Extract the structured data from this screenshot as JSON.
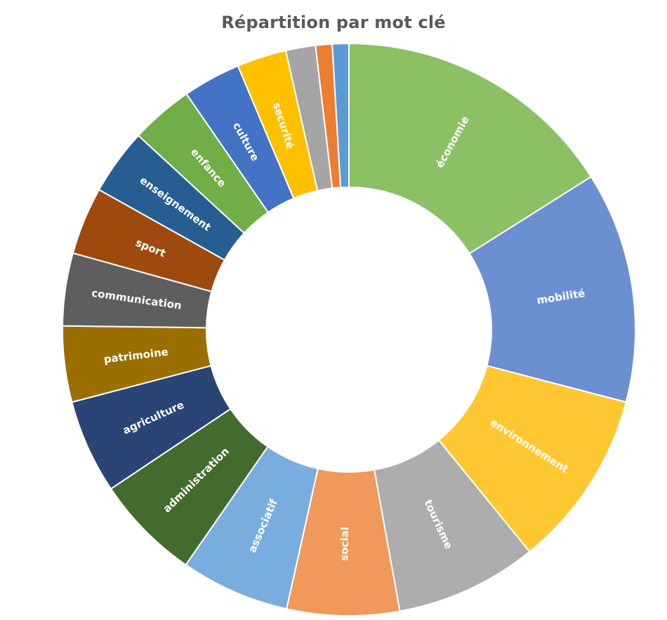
{
  "chart_data": {
    "type": "pie",
    "variant": "donut",
    "title": "Répartition par mot clé",
    "legend": "none",
    "slice_order": "clockwise from top",
    "slices": [
      {
        "label": "économie",
        "value": 17.2,
        "color": "#8CC065"
      },
      {
        "label": "mobilité",
        "value": 14.0,
        "color": "#6A90D1"
      },
      {
        "label": "environnement",
        "value": 10.8,
        "color": "#FFC832"
      },
      {
        "label": "tourisme",
        "value": 8.6,
        "color": "#ADADAD"
      },
      {
        "label": "social",
        "value": 6.8,
        "color": "#F0995A"
      },
      {
        "label": "associatif",
        "value": 6.6,
        "color": "#7AADDF"
      },
      {
        "label": "administration",
        "value": 6.4,
        "color": "#446B2E"
      },
      {
        "label": "agriculture",
        "value": 5.7,
        "color": "#2A4476"
      },
      {
        "label": "patrimoine",
        "value": 4.6,
        "color": "#9A6F00"
      },
      {
        "label": "communication",
        "value": 4.4,
        "color": "#5E5E5E"
      },
      {
        "label": "sport",
        "value": 4.1,
        "color": "#9E4A0F"
      },
      {
        "label": "enseignement",
        "value": 4.0,
        "color": "#275E91"
      },
      {
        "label": "enfance",
        "value": 3.8,
        "color": "#71AE48"
      },
      {
        "label": "culture",
        "value": 3.5,
        "color": "#4472C4"
      },
      {
        "label": "securité",
        "value": 3.0,
        "color": "#FFC000"
      },
      {
        "label": "",
        "value": 1.8,
        "color": "#A5A5A5"
      },
      {
        "label": "",
        "value": 1.0,
        "color": "#ED7D31"
      },
      {
        "label": "",
        "value": 1.0,
        "color": "#5B9BD5"
      }
    ]
  }
}
